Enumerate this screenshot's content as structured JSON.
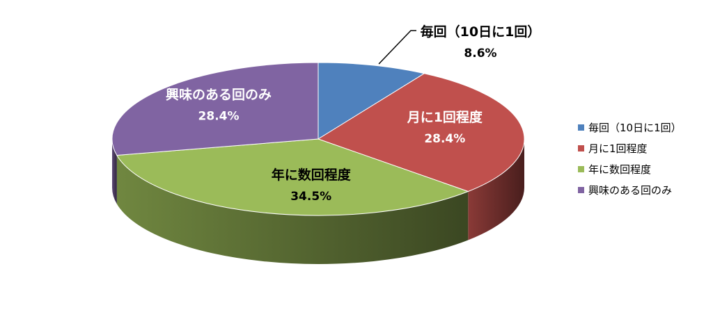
{
  "chart_data": {
    "type": "pie",
    "categories": [
      "毎回（10日に1回）",
      "月に1回程度",
      "年に数回程度",
      "興味のある回のみ"
    ],
    "slice_labels": [
      "毎回（10日に1回）",
      "月に1回程度",
      "年に数回程度",
      "興味のある回のみ"
    ],
    "values": [
      8.6,
      28.4,
      34.5,
      28.4
    ],
    "value_labels": [
      "8.6%",
      "28.4%",
      "34.5%",
      "28.4%"
    ],
    "colors": [
      "#4f81bd",
      "#c0504d",
      "#9bbb59",
      "#8064a2"
    ],
    "label_colors": [
      "#000000",
      "#ffffff",
      "#000000",
      "#ffffff"
    ],
    "style": "3d",
    "legend": "right"
  }
}
